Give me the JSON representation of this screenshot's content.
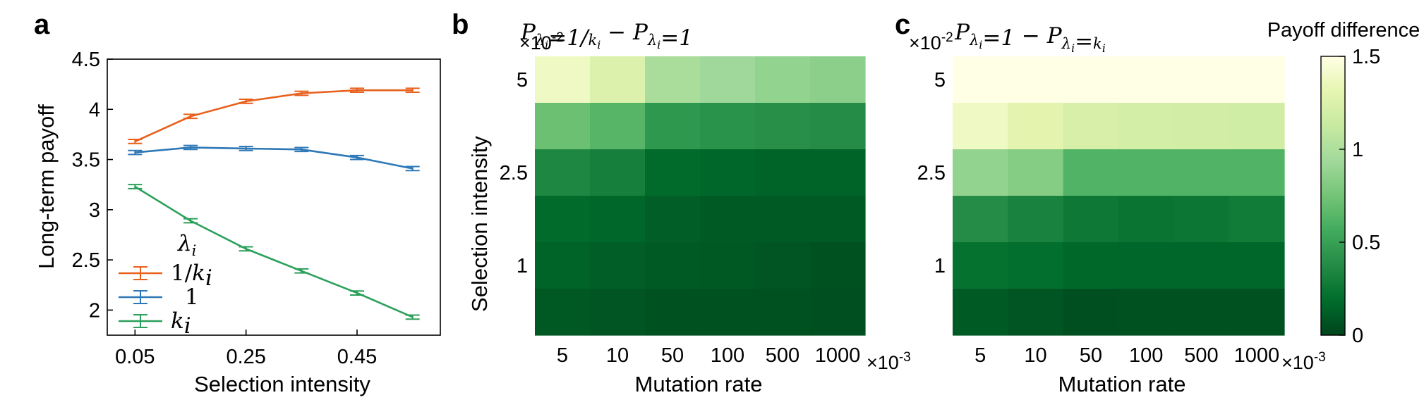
{
  "panel_letters": [
    "a",
    "b",
    "c"
  ],
  "chart_data": [
    {
      "type": "line",
      "panel": "a",
      "xlabel": "Selection intensity",
      "ylabel": "Long-term payoff",
      "x": [
        0.05,
        0.15,
        0.25,
        0.35,
        0.45,
        0.55
      ],
      "xticks": [
        "0.05",
        "0.25",
        "0.45"
      ],
      "xtick_values": [
        0.05,
        0.25,
        0.45
      ],
      "xlim": [
        0.0,
        0.6
      ],
      "ylim": [
        1.75,
        4.5
      ],
      "yticks": [
        "2",
        "2.5",
        "3",
        "3.5",
        "4",
        "4.5"
      ],
      "ytick_values": [
        2,
        2.5,
        3,
        3.5,
        4,
        4.5
      ],
      "legend_title": "λi",
      "legend_position": "bottom-left",
      "series": [
        {
          "name": "1/ki",
          "color": "#E8601C",
          "values": [
            3.68,
            3.93,
            4.08,
            4.16,
            4.19,
            4.19
          ],
          "errors": [
            0.02,
            0.02,
            0.02,
            0.02,
            0.02,
            0.02
          ]
        },
        {
          "name": "1",
          "color": "#2E78B7",
          "values": [
            3.57,
            3.62,
            3.61,
            3.6,
            3.52,
            3.41
          ],
          "errors": [
            0.02,
            0.02,
            0.02,
            0.02,
            0.02,
            0.02
          ]
        },
        {
          "name": "ki",
          "color": "#2CA05A",
          "values": [
            3.23,
            2.89,
            2.61,
            2.39,
            2.17,
            1.93
          ],
          "errors": [
            0.02,
            0.02,
            0.02,
            0.02,
            0.02,
            0.02
          ]
        }
      ],
      "grid": false
    },
    {
      "type": "heatmap",
      "panel": "b",
      "title": "Pλi=1/ki − Pλi=1",
      "xlabel": "Mutation rate",
      "ylabel": "Selection intensity",
      "x_categories": [
        "5",
        "10",
        "50",
        "100",
        "500",
        "1000"
      ],
      "x_multiplier": "×10-3",
      "y_multiplier": "×10-2",
      "y_rows": 6,
      "yticks": [
        "5",
        "2.5",
        "1"
      ],
      "ytick_rows": [
        0,
        2,
        4
      ],
      "values_top_to_bottom": [
        [
          1.38,
          1.25,
          0.98,
          0.93,
          0.88,
          0.85
        ],
        [
          0.72,
          0.64,
          0.45,
          0.42,
          0.4,
          0.38
        ],
        [
          0.35,
          0.3,
          0.18,
          0.16,
          0.14,
          0.14
        ],
        [
          0.18,
          0.16,
          0.12,
          0.1,
          0.1,
          0.1
        ],
        [
          0.14,
          0.12,
          0.1,
          0.09,
          0.08,
          0.06
        ],
        [
          0.09,
          0.08,
          0.06,
          0.06,
          0.06,
          0.05
        ]
      ],
      "vlim": [
        0,
        1.5
      ]
    },
    {
      "type": "heatmap",
      "panel": "c",
      "title": "Pλi=1 − Pλi=ki",
      "xlabel": "Mutation rate",
      "x_categories": [
        "5",
        "10",
        "50",
        "100",
        "500",
        "1000"
      ],
      "x_multiplier": "×10-3",
      "y_multiplier": "×10-2",
      "y_rows": 6,
      "yticks": [
        "5",
        "2.5",
        "1"
      ],
      "ytick_rows": [
        0,
        2,
        4
      ],
      "values_top_to_bottom": [
        [
          1.63,
          1.62,
          1.61,
          1.6,
          1.59,
          1.58
        ],
        [
          1.38,
          1.3,
          1.22,
          1.2,
          1.19,
          1.18
        ],
        [
          0.88,
          0.82,
          0.62,
          0.62,
          0.62,
          0.62
        ],
        [
          0.38,
          0.32,
          0.26,
          0.24,
          0.25,
          0.28
        ],
        [
          0.22,
          0.2,
          0.17,
          0.16,
          0.16,
          0.16
        ],
        [
          0.1,
          0.08,
          0.05,
          0.06,
          0.06,
          0.06
        ]
      ],
      "vlim": [
        0,
        1.5
      ]
    }
  ],
  "colorbar": {
    "title": "Payoff difference",
    "ticks": [
      "0",
      "0.5",
      "1",
      "1.5"
    ],
    "tick_values": [
      0,
      0.5,
      1,
      1.5
    ],
    "vlim": [
      0,
      1.5
    ]
  }
}
